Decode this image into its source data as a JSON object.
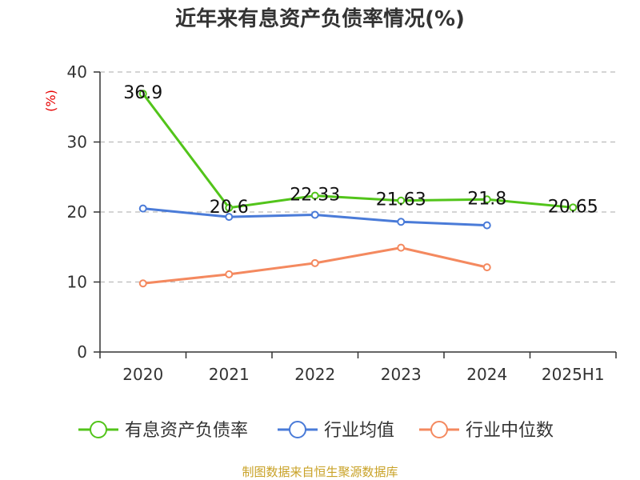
{
  "chart_data": {
    "type": "line",
    "title": "近年来有息资产负债率情况(%)",
    "y_unit_label": "(%)",
    "categories": [
      "2020",
      "2021",
      "2022",
      "2023",
      "2024",
      "2025H1"
    ],
    "ylim": [
      0,
      40
    ],
    "yticks": [
      0,
      10,
      20,
      30,
      40
    ],
    "grid": true,
    "legend_position": "bottom",
    "series": [
      {
        "name": "有息资产负债率",
        "color": "#52c41a",
        "values": [
          36.9,
          20.6,
          22.33,
          21.63,
          21.8,
          20.65
        ],
        "labels": [
          "36.9",
          "20.6",
          "22.33",
          "21.63",
          "21.8",
          "20.65"
        ]
      },
      {
        "name": "行业均值",
        "color": "#4a7bd8",
        "values": [
          20.5,
          19.3,
          19.6,
          18.6,
          18.1,
          null
        ]
      },
      {
        "name": "行业中位数",
        "color": "#f4895f",
        "values": [
          9.8,
          11.1,
          12.7,
          14.9,
          12.1,
          null
        ]
      }
    ]
  },
  "source": "制图数据来自恒生聚源数据库"
}
